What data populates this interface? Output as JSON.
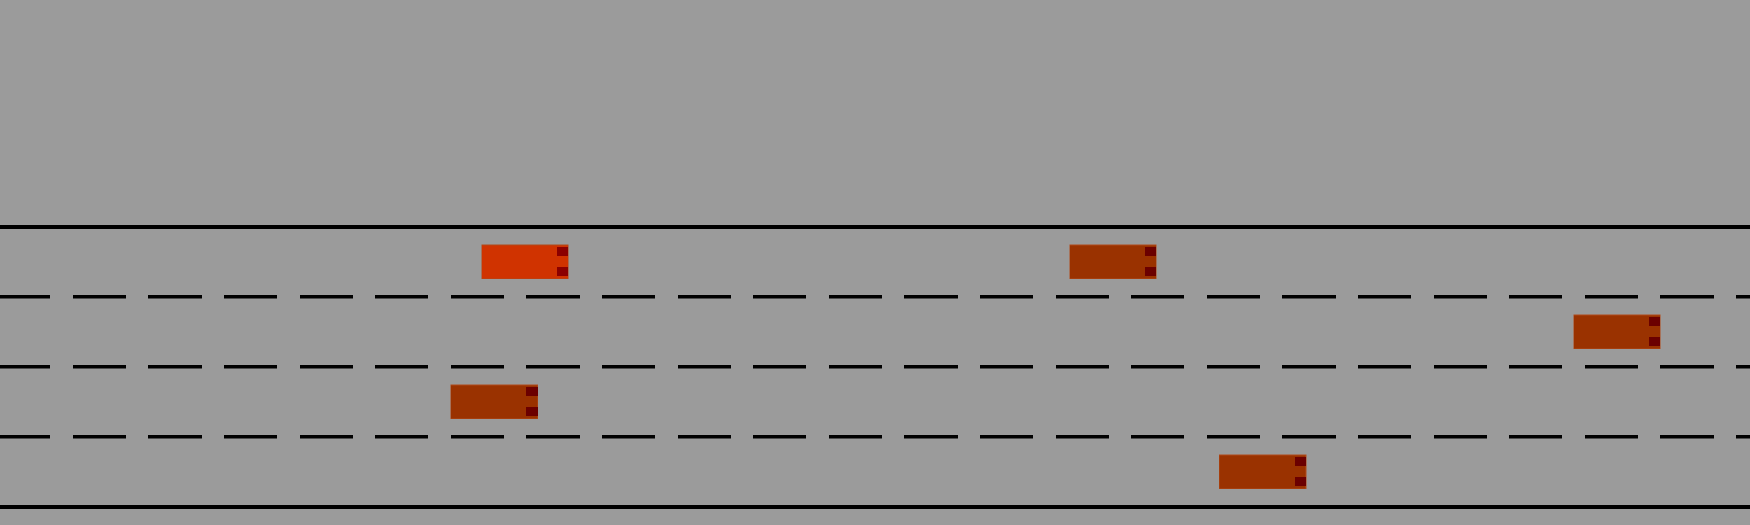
{
  "road": {
    "lane_count": 4,
    "background_color": "#9b9b9b",
    "edge_line_color": "#000000",
    "lane_marking_color": "#000000",
    "lane_marking_style": "dashed"
  },
  "vehicles": [
    {
      "id": "ego-vehicle",
      "role": "controlled",
      "lane": 1,
      "color": "#d03300",
      "light_color": "#8b0000"
    },
    {
      "id": "other-vehicle-1",
      "role": "other",
      "lane": 1,
      "color": "#9a3200",
      "light_color": "#6b0000"
    },
    {
      "id": "other-vehicle-2",
      "role": "other",
      "lane": 2,
      "color": "#9a3200",
      "light_color": "#6b0000"
    },
    {
      "id": "other-vehicle-3",
      "role": "other",
      "lane": 3,
      "color": "#9a3200",
      "light_color": "#6b0000"
    },
    {
      "id": "other-vehicle-4",
      "role": "other",
      "lane": 4,
      "color": "#9a3200",
      "light_color": "#6b0000"
    }
  ]
}
